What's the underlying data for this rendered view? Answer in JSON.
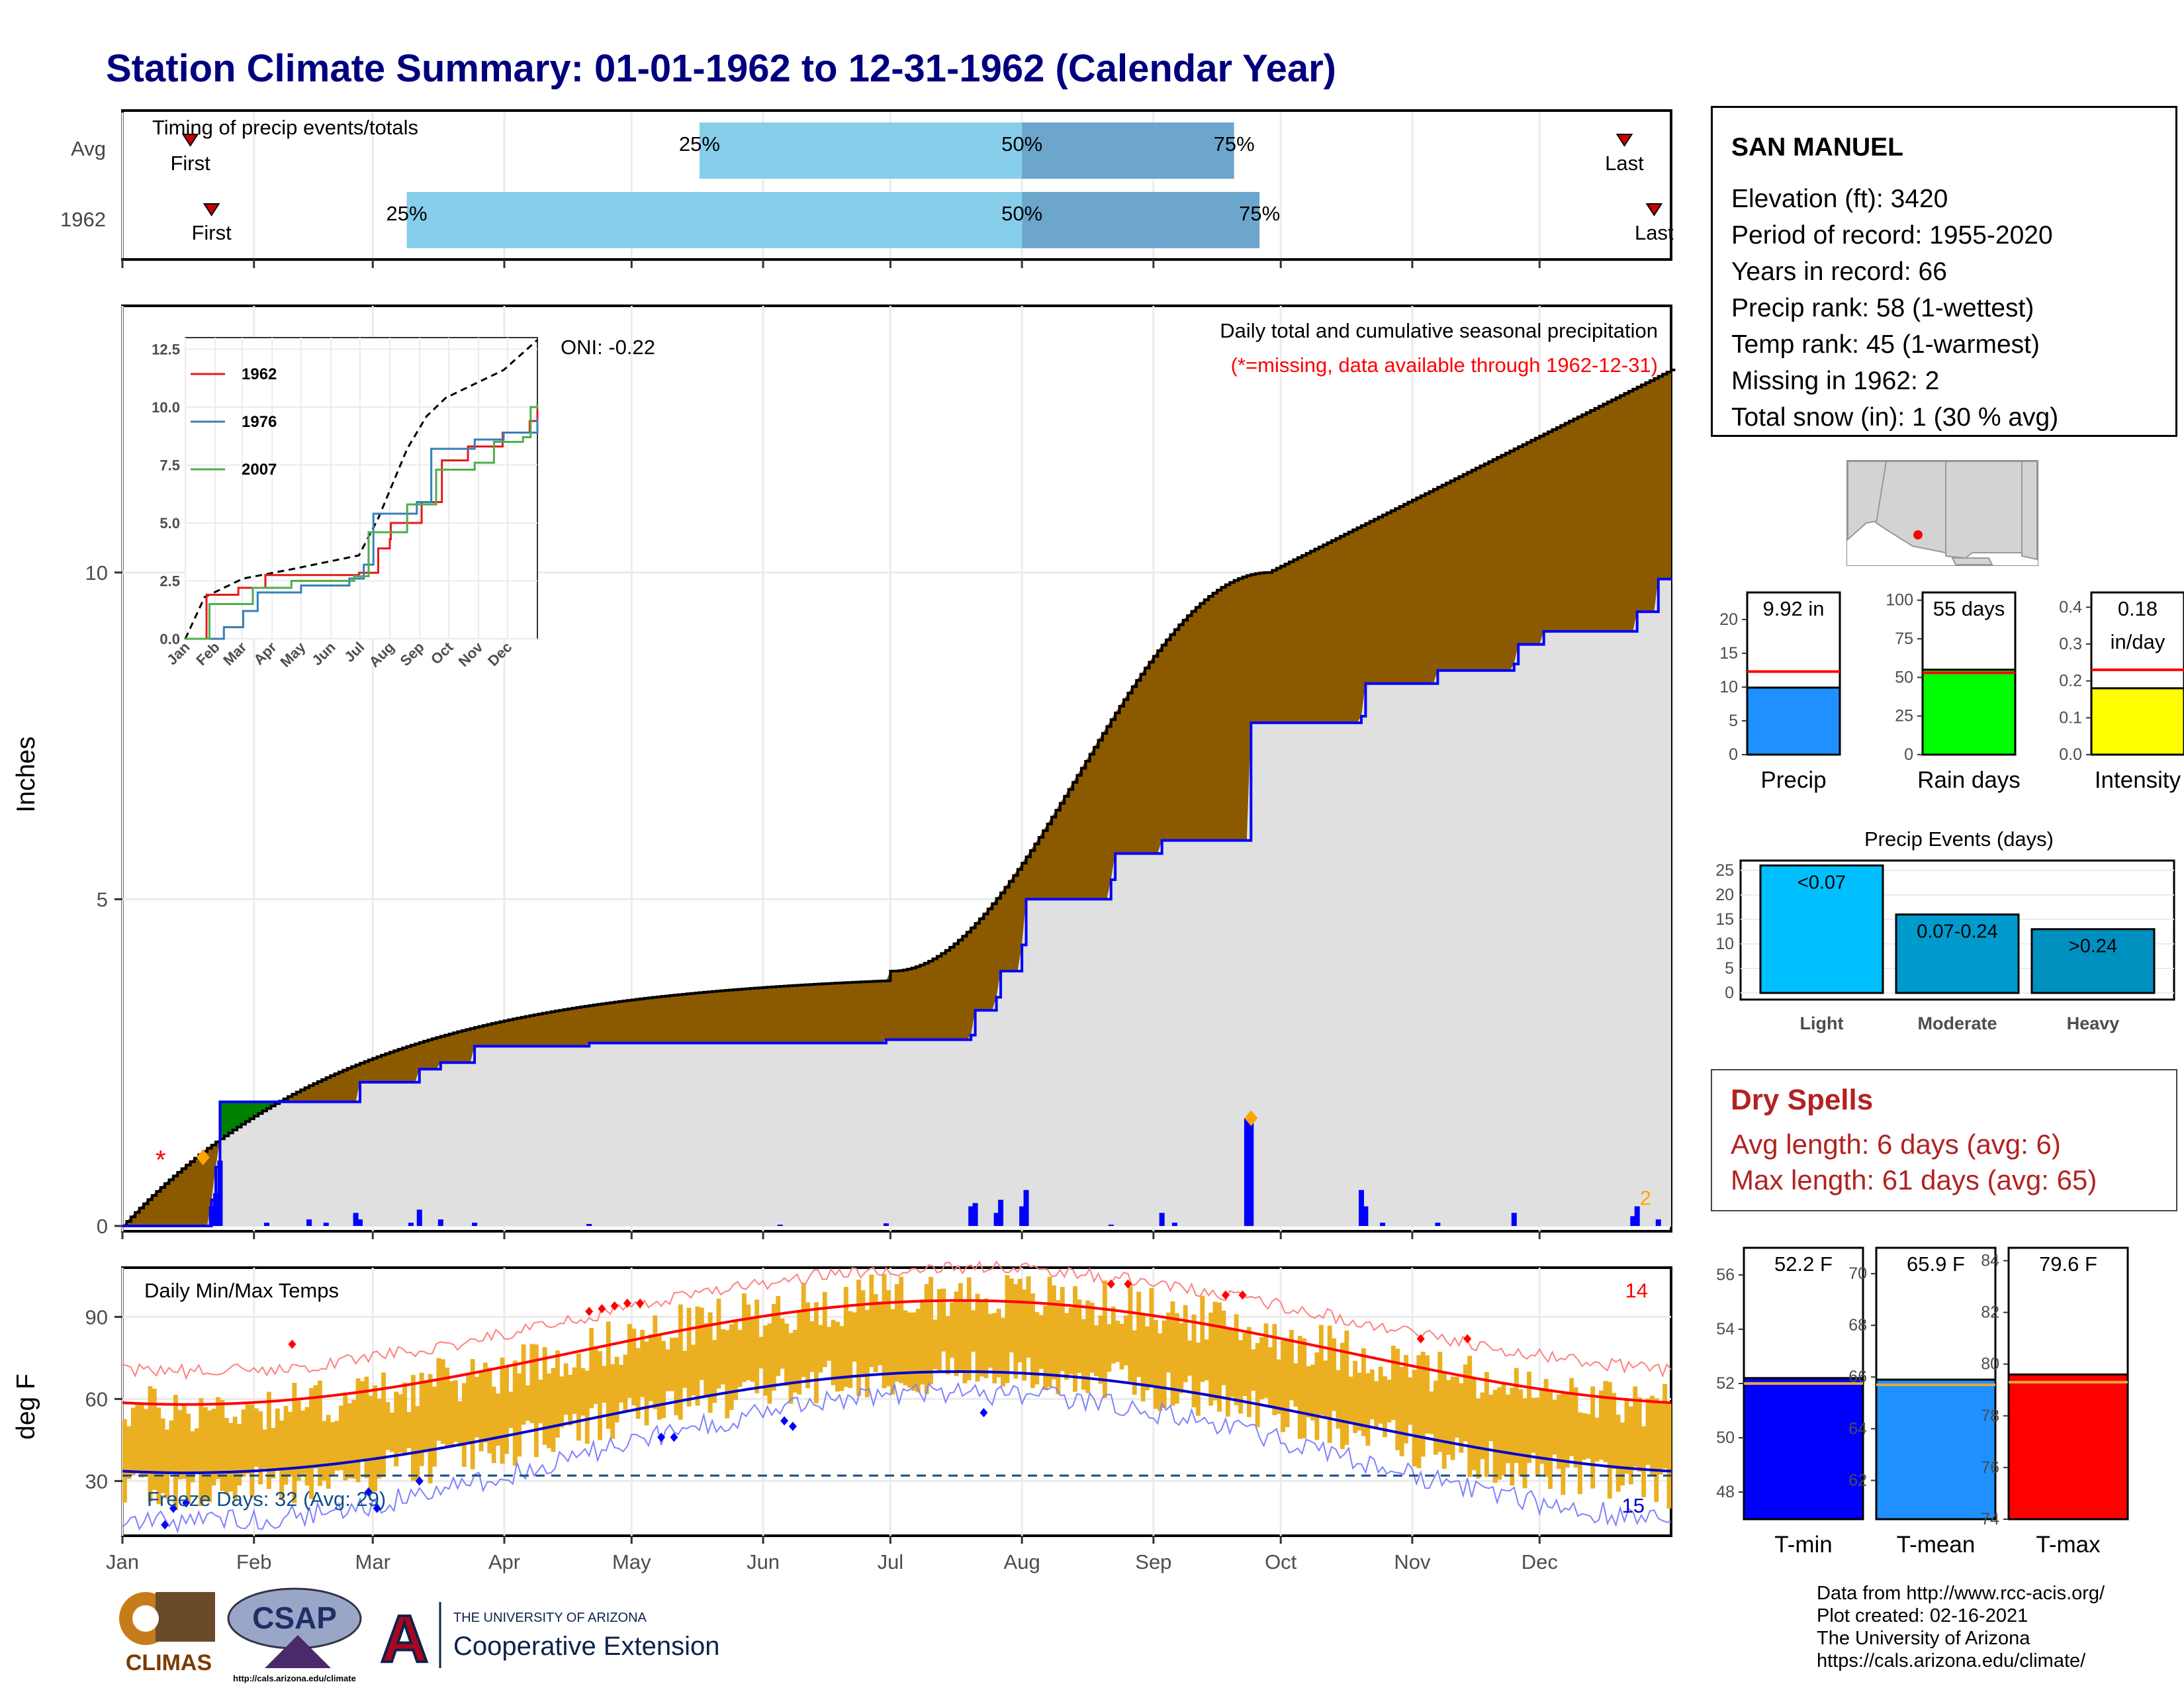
{
  "title": "Station Climate Summary: 01-01-1962 to 12-31-1962 (Calendar Year)",
  "months": [
    "Jan",
    "Feb",
    "Mar",
    "Apr",
    "May",
    "Jun",
    "Jul",
    "Aug",
    "Sep",
    "Oct",
    "Nov",
    "Dec"
  ],
  "timing": {
    "label": "Timing of precip events/totals",
    "rows": [
      {
        "name": "Avg",
        "first_label": "First",
        "last_label": "Last",
        "first_doy": 16,
        "last_doy": 354,
        "p25_doy": 136,
        "p50_doy": 212,
        "p75_doy": 262
      },
      {
        "name": "1962",
        "first_label": "First",
        "last_label": "Last",
        "first_doy": 21,
        "last_doy": 361,
        "p25_doy": 67,
        "p50_doy": 212,
        "p75_doy": 268
      }
    ],
    "pct_labels": [
      "25%",
      "50%",
      "75%"
    ]
  },
  "station": {
    "name": "SAN MANUEL",
    "lines": [
      "Elevation (ft): 3420",
      "Period of record: 1955-2020",
      "Years in record: 66",
      "Precip rank: 58 (1-wettest)",
      "Temp rank: 45 (1-warmest)",
      "Missing in 1962: 2",
      "Total snow (in): 1 (30 % avg)"
    ]
  },
  "precip_panel": {
    "ylabel": "Inches",
    "oni": "ONI: -0.22",
    "caption": "Daily total and cumulative seasonal precipitation",
    "missing_note": "(*=missing, data available through 1962-12-31)",
    "missing_count": "2",
    "yticks": [
      "0",
      "5",
      "10"
    ],
    "colors": {
      "above_avg": "#8b5a00",
      "below_avg": "#008000",
      "observed": "#0000ff",
      "fill": "#e0e0e0"
    }
  },
  "inset": {
    "yticks": [
      "0.0",
      "2.5",
      "5.0",
      "7.5",
      "10.0",
      "12.5"
    ],
    "xticks": [
      "Jan",
      "Feb",
      "Mar",
      "Apr",
      "May",
      "Jun",
      "Jul",
      "Aug",
      "Sep",
      "Oct",
      "Nov",
      "Dec"
    ],
    "legend": [
      {
        "name": "1962",
        "color": "#e41a1c"
      },
      {
        "name": "1976",
        "color": "#377eb8"
      },
      {
        "name": "2007",
        "color": "#4daf4a"
      }
    ]
  },
  "temp_panel": {
    "ylabel": "deg F",
    "title": "Daily Min/Max Temps",
    "record_high_count": "14",
    "record_low_count": "15",
    "freeze": "Freeze Days: 32 (Avg: 29)",
    "yticks": [
      "30",
      "60",
      "90"
    ]
  },
  "summary_bars": [
    {
      "label": "Precip",
      "value_label": "9.92 in",
      "value": 9.92,
      "avg": 12.3,
      "ylim": [
        0,
        24
      ],
      "yticks": [
        "0",
        "5",
        "10",
        "15",
        "20"
      ],
      "color": "#1e90ff"
    },
    {
      "label": "Rain days",
      "value_label": "55 days",
      "value": 55,
      "avg": 53,
      "ylim": [
        0,
        105
      ],
      "yticks": [
        "0",
        "25",
        "50",
        "75",
        "100"
      ],
      "color": "#00ff00"
    },
    {
      "label": "Intensity",
      "value_label": "0.18 in/day",
      "value": 0.18,
      "avg": 0.23,
      "ylim": [
        0,
        0.44
      ],
      "yticks": [
        "0.0",
        "0.1",
        "0.2",
        "0.3",
        "0.4"
      ],
      "color": "#ffff00"
    }
  ],
  "precip_events": {
    "title": "Precip Events (days)",
    "categories": [
      "Light",
      "Moderate",
      "Heavy"
    ],
    "bar_labels": [
      "<0.07",
      "0.07-0.24",
      ">0.24"
    ],
    "values": [
      26,
      16,
      13
    ],
    "yticks": [
      "0",
      "5",
      "10",
      "15",
      "20",
      "25"
    ],
    "colors": [
      "#00bfff",
      "#009acd",
      "#0090c0"
    ]
  },
  "dry_spells": {
    "title": "Dry Spells",
    "avg_line": "Avg length: 6 days (avg: 6)",
    "max_line": "Max length: 61 days (avg: 65)"
  },
  "temp_bars": [
    {
      "label": "T-min",
      "value_label": "52.2 F",
      "value": 52.2,
      "avg": 52.0,
      "ylim": [
        47,
        57
      ],
      "yticks": [
        "48",
        "50",
        "52",
        "54",
        "56"
      ],
      "color": "#0000ff"
    },
    {
      "label": "T-mean",
      "value_label": "65.9 F",
      "value": 65.9,
      "avg": 65.7,
      "ylim": [
        60.5,
        71
      ],
      "yticks": [
        "62",
        "64",
        "66",
        "68",
        "70"
      ],
      "color": "#1e90ff"
    },
    {
      "label": "T-max",
      "value_label": "79.6 F",
      "value": 79.6,
      "avg": 79.3,
      "ylim": [
        74,
        84.5
      ],
      "yticks": [
        "74",
        "76",
        "78",
        "80",
        "82",
        "84"
      ],
      "color": "#ff0000"
    }
  ],
  "credits": [
    "Data from http://www.rcc-acis.org/",
    "Plot created: 02-16-2021",
    "The University of Arizona",
    "https://cals.arizona.edu/climate/"
  ],
  "logos": {
    "climas": "CLIMAS",
    "csap": "CSAP",
    "csap_url": "http://cals.arizona.edu/climate",
    "ua_top": "THE UNIVERSITY OF ARIZONA",
    "ua_bottom": "Cooperative Extension",
    "ua_mark": "A"
  }
}
